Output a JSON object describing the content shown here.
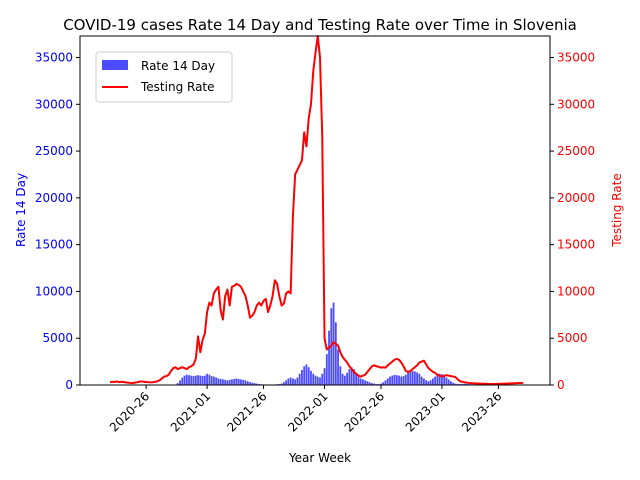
{
  "chart_data": {
    "type": "bar",
    "title": "COVID-19 cases Rate 14 Day and Testing Rate over Time in Slovenia",
    "xlabel": "Year Week",
    "ylabel_left": "Rate 14 Day",
    "ylabel_right": "Testing Rate",
    "ylim_left": [
      0,
      37300
    ],
    "ylim_right": [
      0,
      37300
    ],
    "yticks_left": [
      0,
      5000,
      10000,
      15000,
      20000,
      25000,
      30000,
      35000
    ],
    "yticks_right": [
      0,
      5000,
      10000,
      15000,
      20000,
      25000,
      30000,
      35000
    ],
    "xticks": [
      {
        "label": "2020-26",
        "index": 16
      },
      {
        "label": "2021-01",
        "index": 43
      },
      {
        "label": "2021-26",
        "index": 68
      },
      {
        "label": "2022-01",
        "index": 95
      },
      {
        "label": "2022-26",
        "index": 120
      },
      {
        "label": "2023-01",
        "index": 147
      },
      {
        "label": "2023-26",
        "index": 172
      }
    ],
    "legend": {
      "placement": "upper-left"
    },
    "colors": {
      "bars": "#0000ff",
      "line": "#ff0000",
      "left_axis": "#0000ff",
      "right_axis": "#ff0000"
    },
    "series": [
      {
        "name": "Rate 14 Day",
        "kind": "bar",
        "values": [
          0,
          0,
          0,
          0,
          0,
          0,
          0,
          0,
          0,
          0,
          0,
          0,
          0,
          0,
          0,
          0,
          0,
          0,
          0,
          0,
          0,
          0,
          0,
          0,
          0,
          0,
          0,
          0,
          0,
          0,
          200,
          500,
          800,
          1000,
          1100,
          1050,
          1000,
          950,
          1000,
          1050,
          1000,
          950,
          1000,
          1200,
          1100,
          950,
          900,
          800,
          700,
          650,
          600,
          550,
          500,
          550,
          600,
          650,
          700,
          650,
          600,
          550,
          500,
          400,
          300,
          250,
          200,
          150,
          100,
          80,
          60,
          50,
          40,
          40,
          50,
          60,
          80,
          100,
          150,
          300,
          500,
          700,
          800,
          700,
          600,
          800,
          1200,
          1600,
          2000,
          2200,
          1900,
          1500,
          1200,
          1000,
          900,
          800,
          1200,
          1800,
          3300,
          5800,
          8200,
          8800,
          6700,
          3800,
          2000,
          1200,
          1000,
          1300,
          1700,
          1900,
          1700,
          1300,
          900,
          700,
          600,
          500,
          400,
          300,
          200,
          150,
          100,
          100,
          150,
          300,
          500,
          700,
          900,
          1000,
          1100,
          1050,
          1000,
          900,
          950,
          1100,
          1300,
          1400,
          1500,
          1450,
          1350,
          1200,
          900,
          700,
          500,
          400,
          500,
          700,
          900,
          1100,
          1200,
          1150,
          1000,
          800,
          600,
          400,
          250,
          150,
          100,
          100,
          120,
          150,
          120,
          100,
          80,
          60,
          40,
          30,
          20,
          20,
          15,
          15,
          10,
          10,
          10,
          10,
          10,
          10,
          10,
          10,
          10,
          10,
          10,
          10,
          10,
          10,
          10,
          10,
          10,
          10,
          10
        ]
      },
      {
        "name": "Testing Rate",
        "kind": "line",
        "values": [
          300,
          350,
          320,
          380,
          300,
          350,
          320,
          280,
          250,
          220,
          200,
          250,
          300,
          350,
          380,
          350,
          320,
          300,
          280,
          300,
          350,
          400,
          500,
          700,
          900,
          950,
          1100,
          1500,
          1800,
          1900,
          1700,
          1800,
          1900,
          1800,
          1700,
          1900,
          2000,
          2200,
          2800,
          5200,
          3500,
          4800,
          5500,
          7800,
          8800,
          8500,
          9800,
          10200,
          10500,
          8000,
          7000,
          9500,
          10200,
          8500,
          10500,
          10600,
          10800,
          10700,
          10500,
          10000,
          9500,
          8500,
          7200,
          7400,
          7800,
          8500,
          8800,
          8500,
          9000,
          9200,
          7800,
          8500,
          9500,
          11200,
          10800,
          9500,
          8500,
          8700,
          9800,
          10000,
          9800,
          18000,
          22500,
          23000,
          23500,
          24000,
          27000,
          25500,
          28500,
          30000,
          33500,
          35500,
          37300,
          35000,
          26500,
          5000,
          3800,
          4000,
          4200,
          4600,
          4400,
          4200,
          3500,
          3000,
          2700,
          2400,
          2000,
          1700,
          1400,
          1200,
          1000,
          900,
          1000,
          1100,
          1400,
          1700,
          2000,
          2100,
          2000,
          1950,
          1850,
          1900,
          1850,
          2100,
          2300,
          2500,
          2700,
          2800,
          2700,
          2400,
          2000,
          1500,
          1400,
          1500,
          1700,
          1900,
          2100,
          2400,
          2500,
          2600,
          2200,
          1800,
          1600,
          1400,
          1300,
          1100,
          1000,
          900,
          1000,
          1050,
          1000,
          950,
          900,
          850,
          600,
          400,
          350,
          300,
          250,
          220,
          200,
          180,
          170,
          160,
          150,
          140,
          130,
          120,
          110,
          100,
          100,
          110,
          120,
          130,
          140,
          150,
          160,
          170,
          180,
          190,
          200,
          210,
          220,
          200
        ]
      }
    ]
  }
}
